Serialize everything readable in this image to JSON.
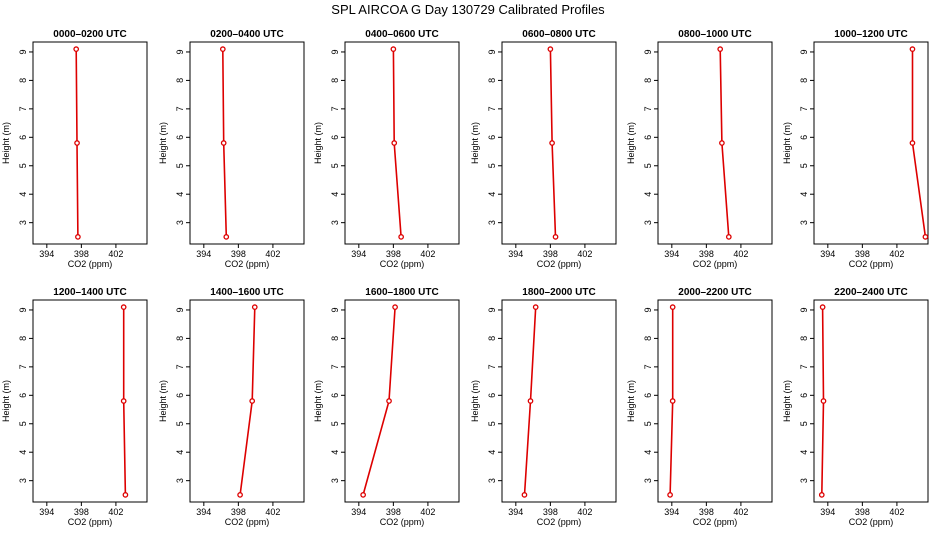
{
  "figure": {
    "title": "SPL AIRCOA G  Day 130729  Calibrated Profiles"
  },
  "colors": {
    "series": "#dd0000",
    "axis": "#000000"
  },
  "chart_data": [
    {
      "type": "line",
      "title": "0000–0200 UTC",
      "xlabel": "CO2 (ppm)",
      "ylabel": "Height (m)",
      "xticks": [
        394,
        398,
        402
      ],
      "yticks": [
        3,
        4,
        5,
        6,
        7,
        8,
        9
      ],
      "xlim": [
        392.4,
        405.6
      ],
      "ylim": [
        2.25,
        9.35
      ],
      "series": [
        {
          "x": [
            397.6,
            397.5,
            397.4
          ],
          "y": [
            2.5,
            5.8,
            9.1
          ]
        }
      ]
    },
    {
      "type": "line",
      "title": "0200–0400 UTC",
      "xlabel": "CO2 (ppm)",
      "ylabel": "Height (m)",
      "xticks": [
        394,
        398,
        402
      ],
      "yticks": [
        3,
        4,
        5,
        6,
        7,
        8,
        9
      ],
      "xlim": [
        392.4,
        405.6
      ],
      "ylim": [
        2.25,
        9.35
      ],
      "series": [
        {
          "x": [
            396.6,
            396.3,
            396.2
          ],
          "y": [
            2.5,
            5.8,
            9.1
          ]
        }
      ]
    },
    {
      "type": "line",
      "title": "0400–0600 UTC",
      "xlabel": "CO2 (ppm)",
      "ylabel": "Height (m)",
      "xticks": [
        394,
        398,
        402
      ],
      "yticks": [
        3,
        4,
        5,
        6,
        7,
        8,
        9
      ],
      "xlim": [
        392.4,
        405.6
      ],
      "ylim": [
        2.25,
        9.35
      ],
      "series": [
        {
          "x": [
            398.9,
            398.1,
            398.0
          ],
          "y": [
            2.5,
            5.8,
            9.1
          ]
        }
      ]
    },
    {
      "type": "line",
      "title": "0600–0800 UTC",
      "xlabel": "CO2 (ppm)",
      "ylabel": "Height (m)",
      "xticks": [
        394,
        398,
        402
      ],
      "yticks": [
        3,
        4,
        5,
        6,
        7,
        8,
        9
      ],
      "xlim": [
        392.4,
        405.6
      ],
      "ylim": [
        2.25,
        9.35
      ],
      "series": [
        {
          "x": [
            398.6,
            398.2,
            398.0
          ],
          "y": [
            2.5,
            5.8,
            9.1
          ]
        }
      ]
    },
    {
      "type": "line",
      "title": "0800–1000 UTC",
      "xlabel": "CO2 (ppm)",
      "ylabel": "Height (m)",
      "xticks": [
        394,
        398,
        402
      ],
      "yticks": [
        3,
        4,
        5,
        6,
        7,
        8,
        9
      ],
      "xlim": [
        392.4,
        405.6
      ],
      "ylim": [
        2.25,
        9.35
      ],
      "series": [
        {
          "x": [
            400.6,
            399.8,
            399.6
          ],
          "y": [
            2.5,
            5.8,
            9.1
          ]
        }
      ]
    },
    {
      "type": "line",
      "title": "1000–1200 UTC",
      "xlabel": "CO2 (ppm)",
      "ylabel": "Height (m)",
      "xticks": [
        394,
        398,
        402
      ],
      "yticks": [
        3,
        4,
        5,
        6,
        7,
        8,
        9
      ],
      "xlim": [
        392.4,
        405.6
      ],
      "ylim": [
        2.25,
        9.35
      ],
      "series": [
        {
          "x": [
            405.3,
            403.8,
            403.8
          ],
          "y": [
            2.5,
            5.8,
            9.1
          ]
        }
      ]
    },
    {
      "type": "line",
      "title": "1200–1400 UTC",
      "xlabel": "CO2 (ppm)",
      "ylabel": "Height (m)",
      "xticks": [
        394,
        398,
        402
      ],
      "yticks": [
        3,
        4,
        5,
        6,
        7,
        8,
        9
      ],
      "xlim": [
        392.4,
        405.6
      ],
      "ylim": [
        2.25,
        9.35
      ],
      "series": [
        {
          "x": [
            403.1,
            402.9,
            402.9
          ],
          "y": [
            2.5,
            5.8,
            9.1
          ]
        }
      ]
    },
    {
      "type": "line",
      "title": "1400–1600 UTC",
      "xlabel": "CO2 (ppm)",
      "ylabel": "Height (m)",
      "xticks": [
        394,
        398,
        402
      ],
      "yticks": [
        3,
        4,
        5,
        6,
        7,
        8,
        9
      ],
      "xlim": [
        392.4,
        405.6
      ],
      "ylim": [
        2.25,
        9.35
      ],
      "series": [
        {
          "x": [
            398.2,
            399.6,
            399.9
          ],
          "y": [
            2.5,
            5.8,
            9.1
          ]
        }
      ]
    },
    {
      "type": "line",
      "title": "1600–1800 UTC",
      "xlabel": "CO2 (ppm)",
      "ylabel": "Height (m)",
      "xticks": [
        394,
        398,
        402
      ],
      "yticks": [
        3,
        4,
        5,
        6,
        7,
        8,
        9
      ],
      "xlim": [
        392.4,
        405.6
      ],
      "ylim": [
        2.25,
        9.35
      ],
      "series": [
        {
          "x": [
            394.5,
            397.5,
            398.2
          ],
          "y": [
            2.5,
            5.8,
            9.1
          ]
        }
      ]
    },
    {
      "type": "line",
      "title": "1800–2000 UTC",
      "xlabel": "CO2 (ppm)",
      "ylabel": "Height (m)",
      "xticks": [
        394,
        398,
        402
      ],
      "yticks": [
        3,
        4,
        5,
        6,
        7,
        8,
        9
      ],
      "xlim": [
        392.4,
        405.6
      ],
      "ylim": [
        2.25,
        9.35
      ],
      "series": [
        {
          "x": [
            395.0,
            395.7,
            396.3
          ],
          "y": [
            2.5,
            5.8,
            9.1
          ]
        }
      ]
    },
    {
      "type": "line",
      "title": "2000–2200 UTC",
      "xlabel": "CO2 (ppm)",
      "ylabel": "Height (m)",
      "xticks": [
        394,
        398,
        402
      ],
      "yticks": [
        3,
        4,
        5,
        6,
        7,
        8,
        9
      ],
      "xlim": [
        392.4,
        405.6
      ],
      "ylim": [
        2.25,
        9.35
      ],
      "series": [
        {
          "x": [
            393.8,
            394.1,
            394.1
          ],
          "y": [
            2.5,
            5.8,
            9.1
          ]
        }
      ]
    },
    {
      "type": "line",
      "title": "2200–2400 UTC",
      "xlabel": "CO2 (ppm)",
      "ylabel": "Height (m)",
      "xticks": [
        394,
        398,
        402
      ],
      "yticks": [
        3,
        4,
        5,
        6,
        7,
        8,
        9
      ],
      "xlim": [
        392.4,
        405.6
      ],
      "ylim": [
        2.25,
        9.35
      ],
      "series": [
        {
          "x": [
            393.3,
            393.5,
            393.4
          ],
          "y": [
            2.5,
            5.8,
            9.1
          ]
        }
      ]
    }
  ]
}
